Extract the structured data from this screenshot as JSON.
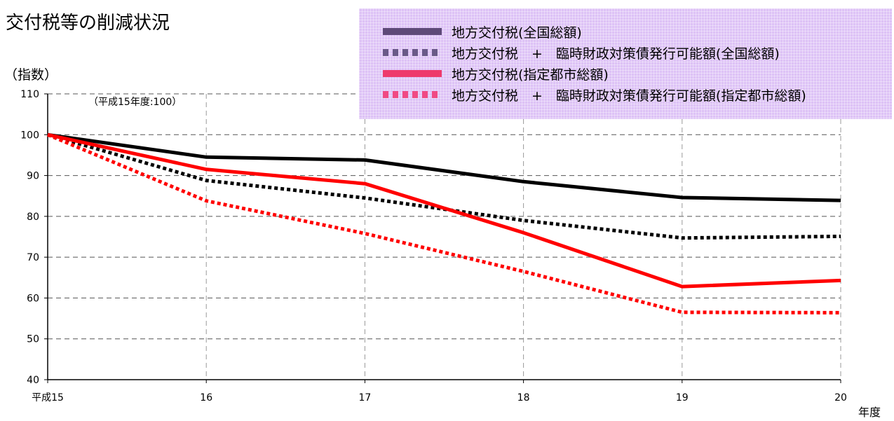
{
  "title": "交付税等の削減状況",
  "chart_data": {
    "type": "line",
    "title": "交付税等の削減状況",
    "ylabel": "（指数）",
    "xlabel": "年度",
    "annotation": "（平成15年度:100）",
    "categories": [
      "平成15",
      "16",
      "17",
      "18",
      "19",
      "20"
    ],
    "ylim": [
      40,
      110
    ],
    "yticks": [
      40,
      50,
      60,
      70,
      80,
      90,
      100,
      110
    ],
    "grid": true,
    "legend_position": "top-right",
    "series": [
      {
        "name": "地方交付税(全国総額)",
        "values": [
          100,
          94.5,
          93.8,
          88.5,
          84.6,
          83.9
        ],
        "color": "#000000",
        "dashed": false,
        "legend_color": "#5e4a78"
      },
      {
        "name": "地方交付税　+　臨時財政対策債発行可能額(全国総額)",
        "values": [
          100,
          88.8,
          84.5,
          79,
          74.7,
          75.1
        ],
        "color": "#000000",
        "dashed": true,
        "legend_color": "#6a5a88"
      },
      {
        "name": "地方交付税(指定都市総額)",
        "values": [
          100,
          91.5,
          88,
          76,
          62.8,
          64.3
        ],
        "color": "#ff0000",
        "dashed": false,
        "legend_color": "#ee3a6c"
      },
      {
        "name": "地方交付税　+　臨時財政対策債発行可能額(指定都市総額)",
        "values": [
          100,
          83.8,
          75.8,
          66.5,
          56.5,
          56.4
        ],
        "color": "#ff0000",
        "dashed": true,
        "legend_color": "#f04a84"
      }
    ]
  }
}
